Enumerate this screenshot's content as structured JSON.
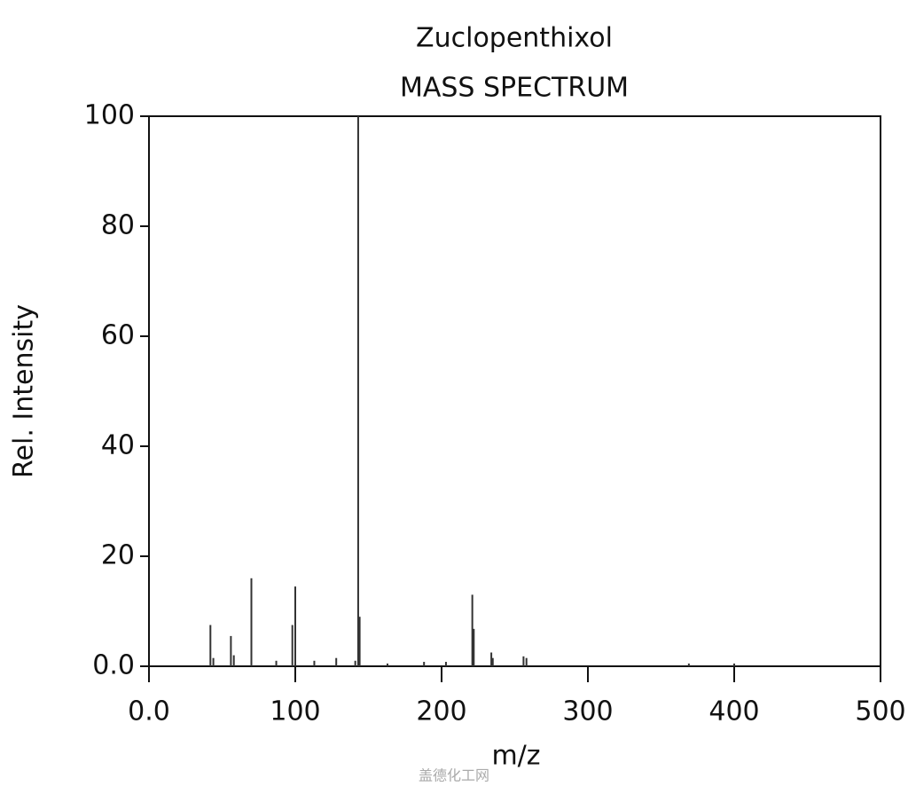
{
  "chart_data": {
    "type": "bar",
    "title": "Zuclopenthixol",
    "subtitle": "MASS SPECTRUM",
    "x_label": "m/z",
    "y_label": "Rel. Intensity",
    "color": "#333333",
    "x": [
      42,
      44,
      56,
      58,
      70,
      87,
      98,
      100,
      113,
      128,
      141,
      143,
      144,
      163,
      188,
      203,
      221,
      222,
      234,
      235,
      256,
      258,
      369,
      400
    ],
    "values": [
      7.5,
      1.5,
      5.5,
      2,
      16,
      1,
      7.5,
      14.5,
      1,
      1.5,
      1,
      100,
      9,
      0.5,
      0.8,
      0.8,
      13,
      6.8,
      2.5,
      1.5,
      1.8,
      1.5,
      0.5,
      0.5
    ],
    "xlim": [
      0,
      500
    ],
    "ylim": [
      0,
      100
    ],
    "xticks": [
      {
        "value": 0,
        "label": "0.0"
      },
      100,
      200,
      300,
      400,
      500
    ],
    "yticks": [
      {
        "value": 0,
        "label": "0.0"
      },
      20,
      40,
      60,
      80,
      100
    ],
    "watermark": "盖德化工网"
  }
}
